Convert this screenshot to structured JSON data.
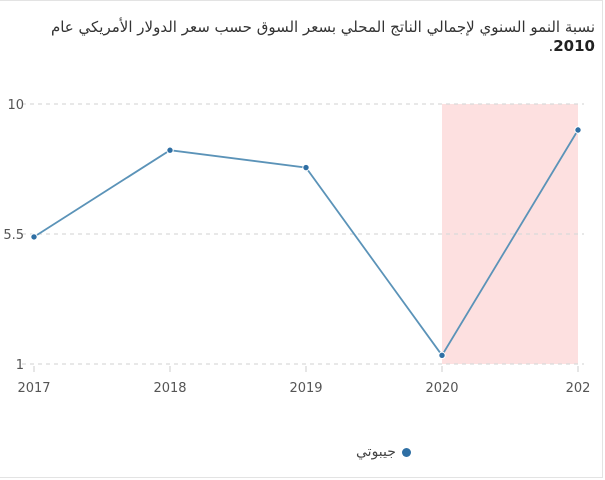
{
  "title": {
    "text": "نسبة النمو السنوي لإجمالي الناتج المحلي بسعر السوق حسب سعر الدولار الأمريكي عام",
    "year": "2010",
    "suffix": "."
  },
  "colors": {
    "line": "#5b93b8",
    "marker": "#2f6fa4",
    "highlight": "#fde0e0",
    "grid": "#d9d9d9",
    "axis_text": "#555555"
  },
  "chart_data": {
    "type": "line",
    "x": [
      "2017",
      "2018",
      "2019",
      "2020",
      "202"
    ],
    "ytick_labels": [
      "10",
      "5.5",
      "1"
    ],
    "ylim": [
      1,
      10
    ],
    "series": [
      {
        "name": "جيبوتي",
        "values": [
          5.4,
          8.4,
          7.8,
          1.3,
          9.1
        ]
      }
    ],
    "highlight_category": "2020",
    "grid": true,
    "legend": "bottom-center"
  }
}
